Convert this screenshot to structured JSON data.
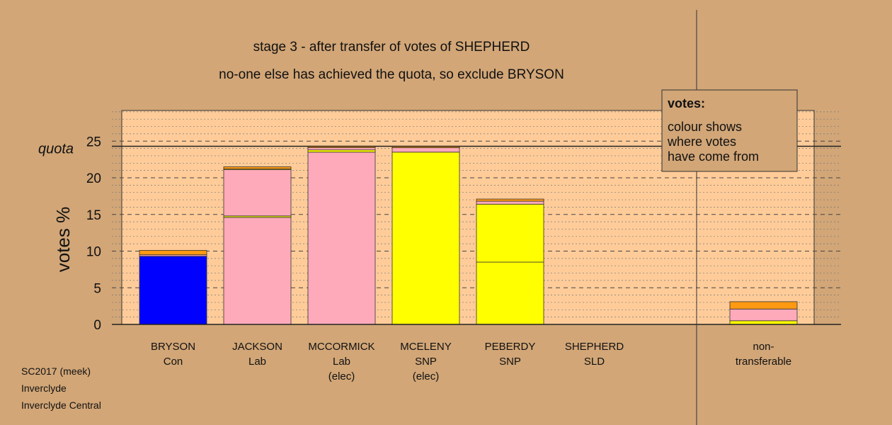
{
  "chart_data": {
    "type": "bar",
    "title": "stage 3 - after transfer of votes of SHEPHERD",
    "subtitle": "no-one else has achieved the quota, so exclude BRYSON",
    "ylabel": "votes %",
    "ylim": [
      0,
      29.5
    ],
    "yticks": [
      0,
      5,
      10,
      15,
      20,
      25
    ],
    "quota": 24.3,
    "quota_label": "quota",
    "legend": {
      "title": "votes:",
      "lines": [
        "colour shows",
        "where votes",
        "have come from"
      ]
    },
    "colors": {
      "Con": "#0000ff",
      "Lab": "#ffaabb",
      "SNP": "#ffff00",
      "SLD": "#ff9911"
    },
    "bars": [
      {
        "name": "BRYSON",
        "party": "Con",
        "status": "",
        "segments": [
          {
            "from": "Con",
            "value": 9.3
          },
          {
            "from": "Lab",
            "value": 0.2
          },
          {
            "from": "SLD",
            "value": 0.6
          }
        ]
      },
      {
        "name": "JACKSON",
        "party": "Lab",
        "status": "",
        "segments": [
          {
            "from": "Lab",
            "value": 14.6
          },
          {
            "from": "SNP",
            "value": 0.2
          },
          {
            "from": "Lab",
            "value": 6.3
          },
          {
            "from": "SNP",
            "value": 0.1
          },
          {
            "from": "SLD",
            "value": 0.3
          }
        ]
      },
      {
        "name": "MCCORMICK",
        "party": "Lab",
        "status": "(elec)",
        "segments": [
          {
            "from": "Lab",
            "value": 23.5
          },
          {
            "from": "SNP",
            "value": 0.3
          },
          {
            "from": "Lab",
            "value": 0.3
          },
          {
            "from": "SLD",
            "value": 0.2
          }
        ]
      },
      {
        "name": "MCELENY",
        "party": "SNP",
        "status": "(elec)",
        "segments": [
          {
            "from": "SNP",
            "value": 23.5
          },
          {
            "from": "Lab",
            "value": 0.6
          },
          {
            "from": "SLD",
            "value": 0.2
          }
        ]
      },
      {
        "name": "PEBERDY",
        "party": "SNP",
        "status": "",
        "segments": [
          {
            "from": "SNP",
            "value": 8.5
          },
          {
            "from": "SNP",
            "value": 7.9
          },
          {
            "from": "Lab",
            "value": 0.4
          },
          {
            "from": "SLD",
            "value": 0.3
          }
        ]
      },
      {
        "name": "SHEPHERD",
        "party": "SLD",
        "status": "",
        "segments": []
      }
    ],
    "nontransferable": {
      "label": "non-\ntransferable",
      "segments": [
        {
          "from": "SNP",
          "value": 0.5
        },
        {
          "from": "Lab",
          "value": 1.6
        },
        {
          "from": "SLD",
          "value": 1.0
        }
      ]
    }
  },
  "footer": {
    "line1": "SC2017 (meek)",
    "line2": "Inverclyde",
    "line3": "Inverclyde Central"
  }
}
